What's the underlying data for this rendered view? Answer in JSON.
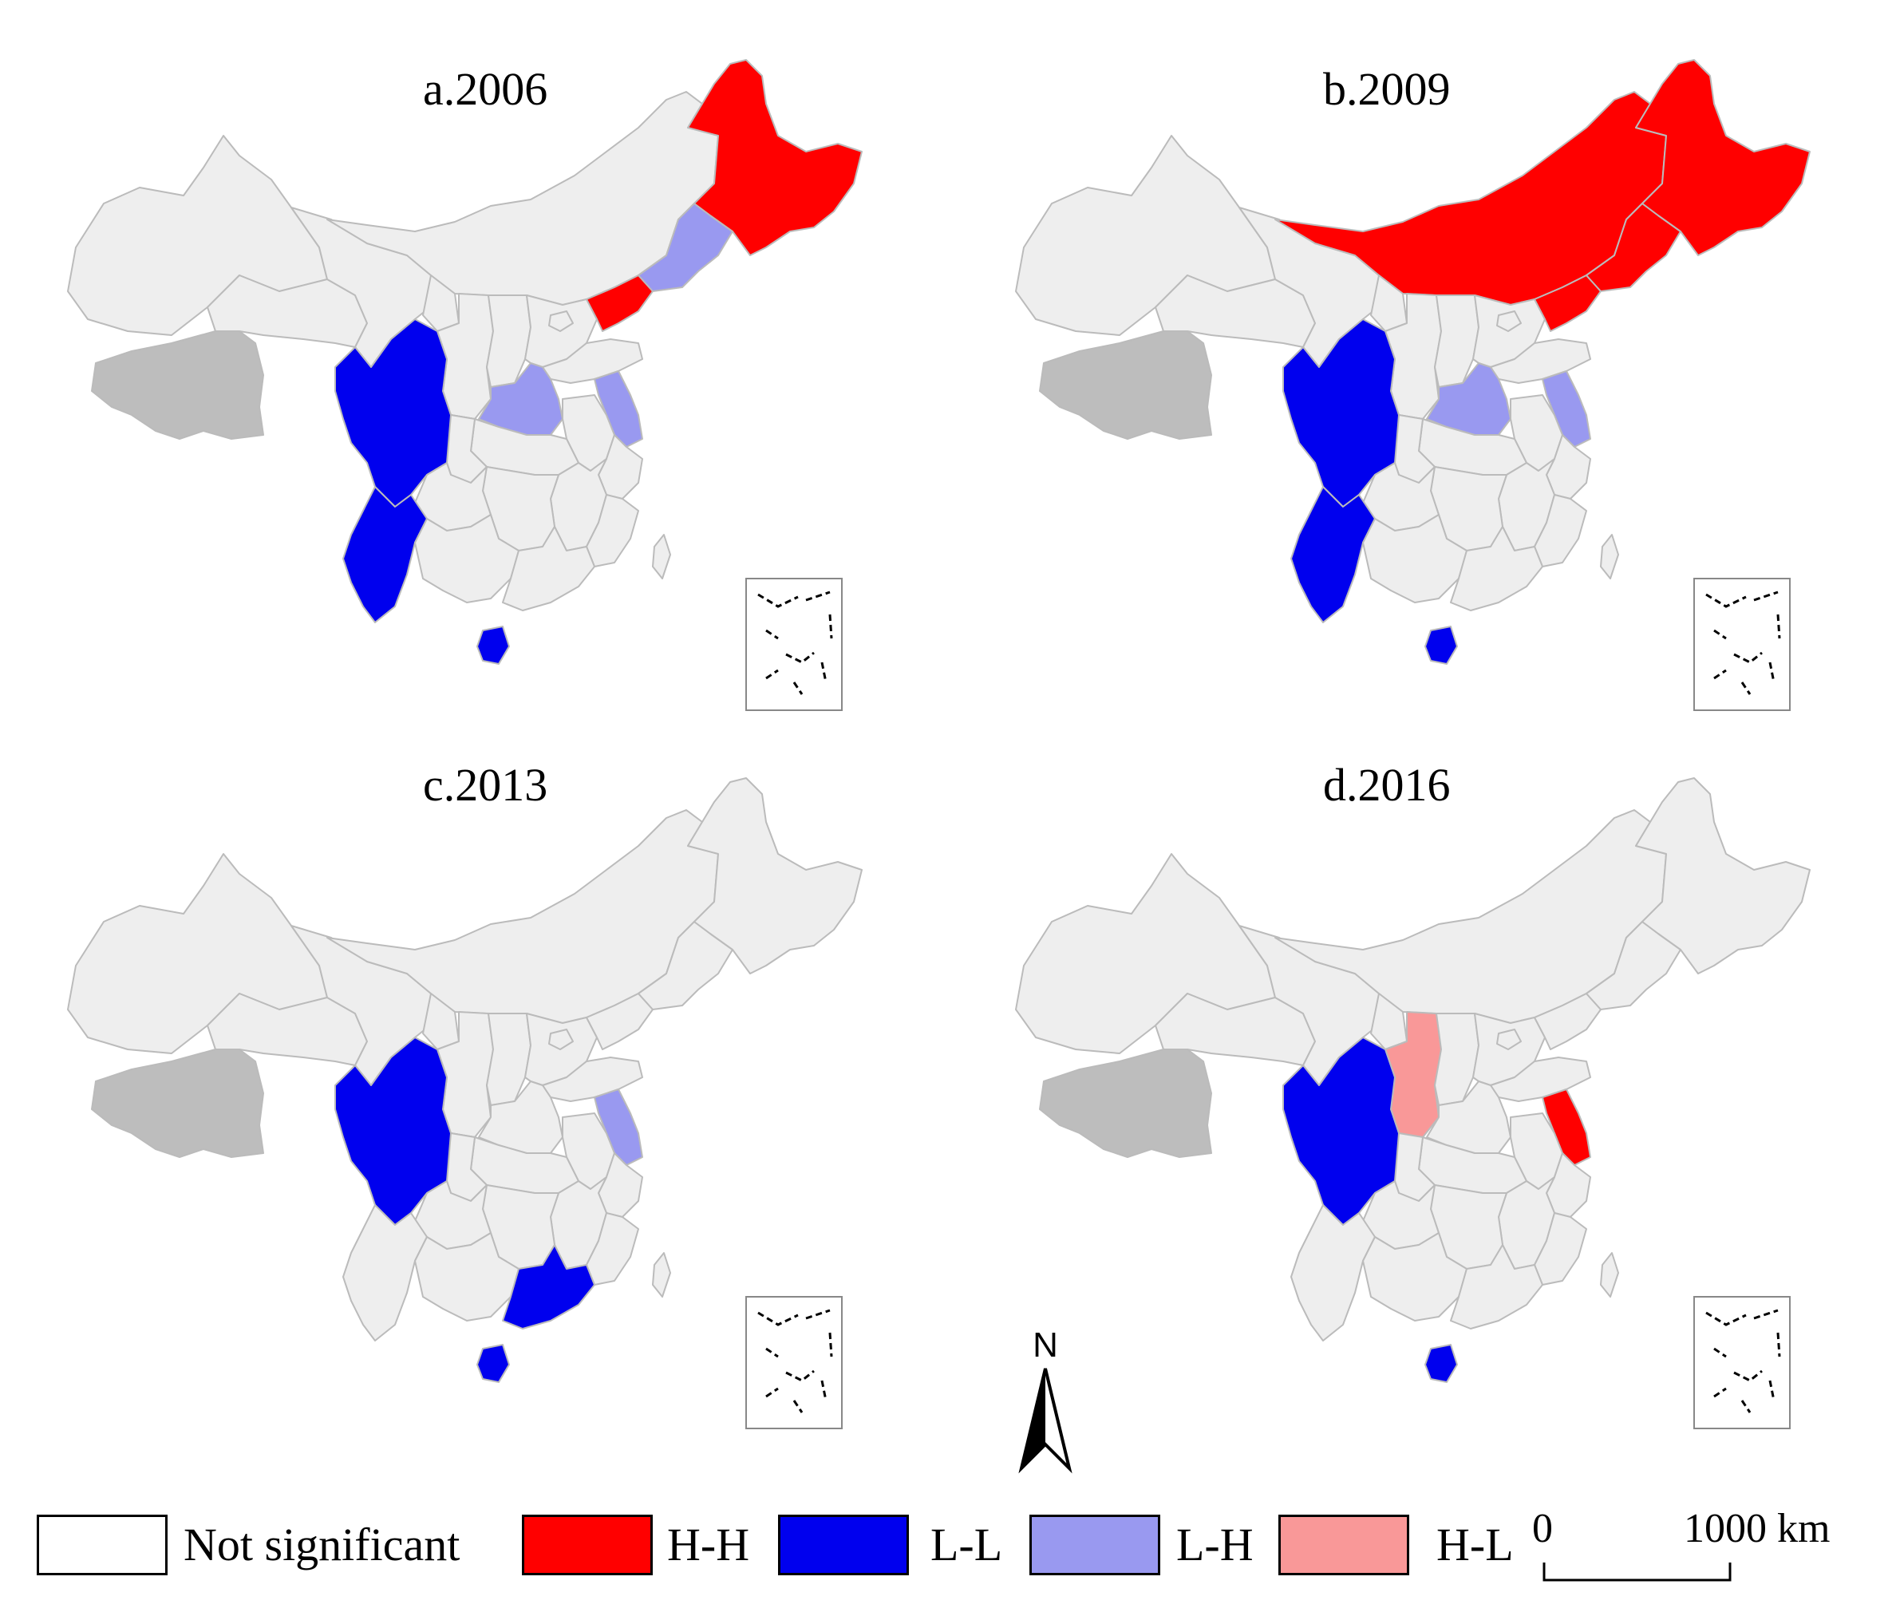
{
  "panels": [
    {
      "title": "a.2006",
      "regions": {
        "heilongjiang": "H-H",
        "jilin": "L-H",
        "liaoning": "H-H",
        "sichuan": "L-L",
        "yunnan": "L-L",
        "hainan": "L-L",
        "henan": "L-H",
        "jiangsu": "L-H"
      }
    },
    {
      "title": "b.2009",
      "regions": {
        "heilongjiang": "H-H",
        "jilin": "H-H",
        "liaoning": "H-H",
        "innermongolia": "H-H",
        "sichuan": "L-L",
        "yunnan": "L-L",
        "hainan": "L-L",
        "henan": "L-H",
        "jiangsu": "L-H"
      }
    },
    {
      "title": "c.2013",
      "regions": {
        "sichuan": "L-L",
        "guangdong": "L-L",
        "hainan": "L-L",
        "jiangsu": "L-H"
      }
    },
    {
      "title": "d.2016",
      "regions": {
        "sichuan": "L-L",
        "hainan": "L-L",
        "shaanxi": "H-L",
        "jiangsu": "H-H"
      }
    }
  ],
  "legend": [
    {
      "key": "Not significant",
      "label": "Not significant",
      "color": "#ffffff"
    },
    {
      "key": "H-H",
      "label": "H-H",
      "color": "#ff0000"
    },
    {
      "key": "L-L",
      "label": "L-L",
      "color": "#0000ee"
    },
    {
      "key": "L-H",
      "label": "L-H",
      "color": "#9999f0"
    },
    {
      "key": "H-L",
      "label": "H-L",
      "color": "#f99898"
    }
  ],
  "colors": {
    "base": "#eeeeee",
    "border": "#bbbbbb",
    "nodata": "#bdbdbd",
    "box": "#000000"
  },
  "scale": {
    "start": "0",
    "end": "1000 km"
  },
  "north_label": "N"
}
